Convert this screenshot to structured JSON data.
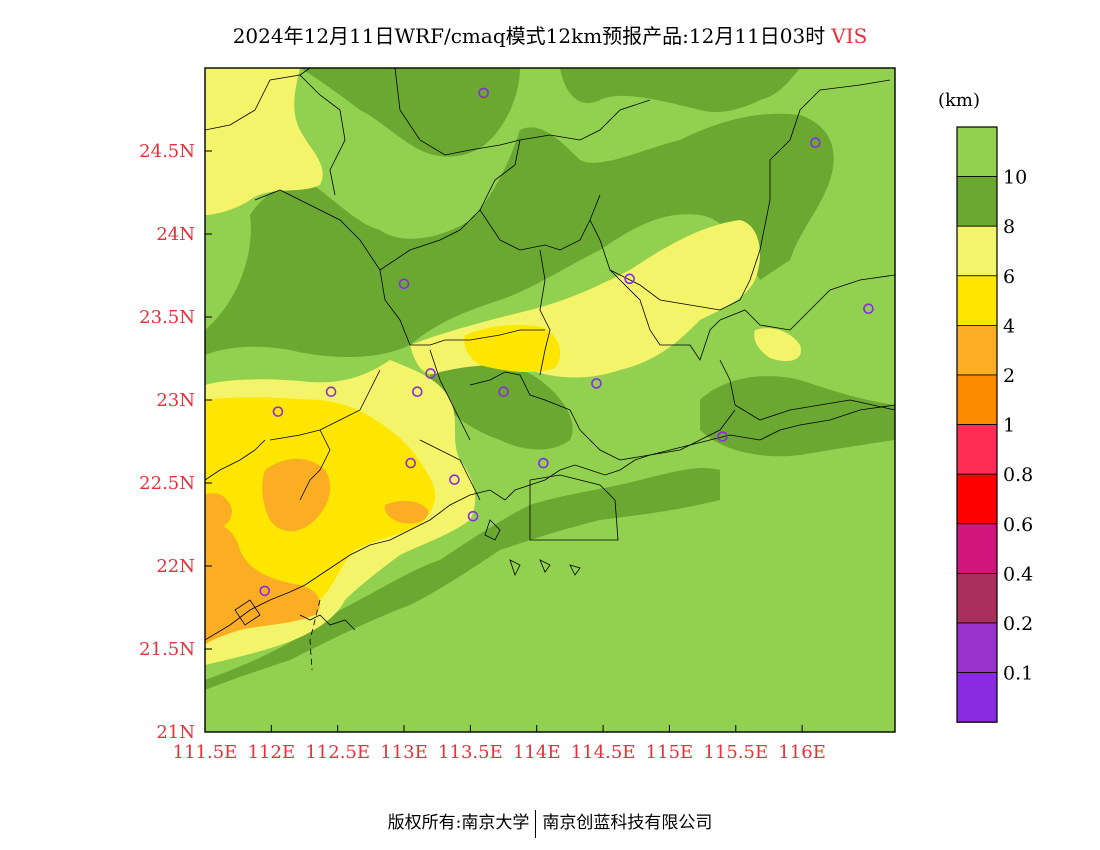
{
  "title": "2024年12月11日WRF/cmaq模式12km预报产品:12月11日03时",
  "variable": "VIS",
  "unit": "(km)",
  "footer": {
    "left": "版权所有:南京大学",
    "right": "南京创蓝科技有限公司"
  },
  "axes": {
    "lon_labels": [
      "111.5E",
      "112E",
      "112.5E",
      "113E",
      "113.5E",
      "114E",
      "114.5E",
      "115E",
      "115.5E",
      "116E"
    ],
    "lat_labels": [
      "21N",
      "21.5N",
      "22N",
      "22.5N",
      "23N",
      "23.5N",
      "24N",
      "24.5N"
    ],
    "lon_range": [
      111.5,
      116.7
    ],
    "lat_range": [
      21.0,
      25.0
    ]
  },
  "colorbar": {
    "labels": [
      "10",
      "8",
      "6",
      "4",
      "2",
      "1",
      "0.8",
      "0.6",
      "0.4",
      "0.2",
      "0.1"
    ],
    "colors": [
      "#92d050",
      "#6aa832",
      "#f4f46a",
      "#ffe600",
      "#fbae24",
      "#ff8c00",
      "#ff2d55",
      "#ff0000",
      "#d0157c",
      "#a8305a",
      "#9932cc",
      "#8a2be2"
    ]
  },
  "colors": {
    "label_red": "#e8303a",
    "station_marker": "#8a2be2",
    "cat_gt10": "#92d050",
    "cat_8_10": "#6aa832",
    "cat_6_8": "#f4f46a",
    "cat_4_6": "#ffe600",
    "cat_2_4": "#fbae24"
  },
  "stations": [
    {
      "lon": 113.6,
      "lat": 24.85
    },
    {
      "lon": 116.1,
      "lat": 24.55
    },
    {
      "lon": 113.0,
      "lat": 23.7
    },
    {
      "lon": 114.7,
      "lat": 23.73
    },
    {
      "lon": 116.5,
      "lat": 23.55
    },
    {
      "lon": 112.45,
      "lat": 23.05
    },
    {
      "lon": 113.1,
      "lat": 23.05
    },
    {
      "lon": 113.2,
      "lat": 23.16
    },
    {
      "lon": 113.75,
      "lat": 23.05
    },
    {
      "lon": 114.45,
      "lat": 23.1
    },
    {
      "lon": 112.05,
      "lat": 22.93
    },
    {
      "lon": 115.4,
      "lat": 22.78
    },
    {
      "lon": 113.05,
      "lat": 22.62
    },
    {
      "lon": 114.05,
      "lat": 22.62
    },
    {
      "lon": 113.38,
      "lat": 22.52
    },
    {
      "lon": 113.52,
      "lat": 22.3
    },
    {
      "lon": 111.95,
      "lat": 21.85
    }
  ]
}
